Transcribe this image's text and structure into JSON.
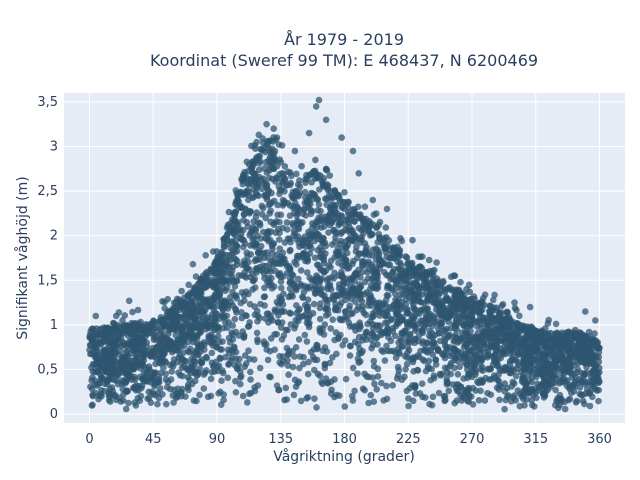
{
  "chart_data": {
    "type": "scatter",
    "title_line1": "År 1979 - 2019",
    "title_line2": "Koordinat (Sweref 99 TM): E 468437, N 6200469",
    "xlabel": "Vågriktning (grader)",
    "ylabel": "Signifikant våghöjd (m)",
    "xlim": [
      -18,
      378
    ],
    "ylim": [
      -0.1,
      3.6
    ],
    "x_ticks": [
      0,
      45,
      90,
      135,
      180,
      225,
      270,
      315,
      360
    ],
    "x_tick_labels": [
      "0",
      "45",
      "90",
      "135",
      "180",
      "225",
      "270",
      "315",
      "360"
    ],
    "y_ticks": [
      0,
      0.5,
      1,
      1.5,
      2,
      2.5,
      3,
      3.5
    ],
    "y_tick_labels": [
      "0",
      "0,5",
      "1",
      "1,5",
      "2",
      "2,5",
      "3",
      "3,5"
    ],
    "grid": true,
    "marker_color": "#2f5670",
    "background_color": "#e5ecf6",
    "envelope": {
      "direction": [
        0,
        20,
        45,
        60,
        75,
        90,
        100,
        110,
        120,
        128,
        135,
        145,
        160,
        170,
        180,
        195,
        210,
        225,
        240,
        255,
        270,
        285,
        300,
        315,
        330,
        345,
        360
      ],
      "max_height": [
        0.95,
        1.0,
        1.05,
        1.2,
        1.45,
        1.75,
        2.2,
        2.75,
        3.0,
        3.1,
        2.9,
        2.6,
        2.75,
        2.6,
        2.35,
        2.2,
        2.0,
        1.75,
        1.6,
        1.45,
        1.3,
        1.2,
        1.05,
        0.95,
        0.9,
        0.95,
        0.8
      ]
    },
    "notable_points": [
      {
        "x": 162,
        "y": 3.52
      },
      {
        "x": 160,
        "y": 3.45
      },
      {
        "x": 167,
        "y": 3.3
      },
      {
        "x": 125,
        "y": 3.25
      },
      {
        "x": 130,
        "y": 3.2
      },
      {
        "x": 155,
        "y": 3.15
      },
      {
        "x": 178,
        "y": 3.1
      },
      {
        "x": 118,
        "y": 3.05
      },
      {
        "x": 145,
        "y": 2.95
      },
      {
        "x": 186,
        "y": 2.95
      },
      {
        "x": 190,
        "y": 2.7
      },
      {
        "x": 200,
        "y": 2.4
      },
      {
        "x": 210,
        "y": 2.3
      },
      {
        "x": 228,
        "y": 1.95
      },
      {
        "x": 245,
        "y": 1.7
      },
      {
        "x": 258,
        "y": 1.55
      },
      {
        "x": 268,
        "y": 1.45
      },
      {
        "x": 278,
        "y": 1.3
      },
      {
        "x": 285,
        "y": 1.28
      },
      {
        "x": 300,
        "y": 1.25
      },
      {
        "x": 311,
        "y": 1.2
      },
      {
        "x": 350,
        "y": 1.15
      },
      {
        "x": 357,
        "y": 1.05
      },
      {
        "x": 28,
        "y": 1.27
      },
      {
        "x": 65,
        "y": 1.38
      },
      {
        "x": 70,
        "y": 1.45
      },
      {
        "x": 82,
        "y": 1.78
      },
      {
        "x": 73,
        "y": 1.68
      }
    ]
  }
}
